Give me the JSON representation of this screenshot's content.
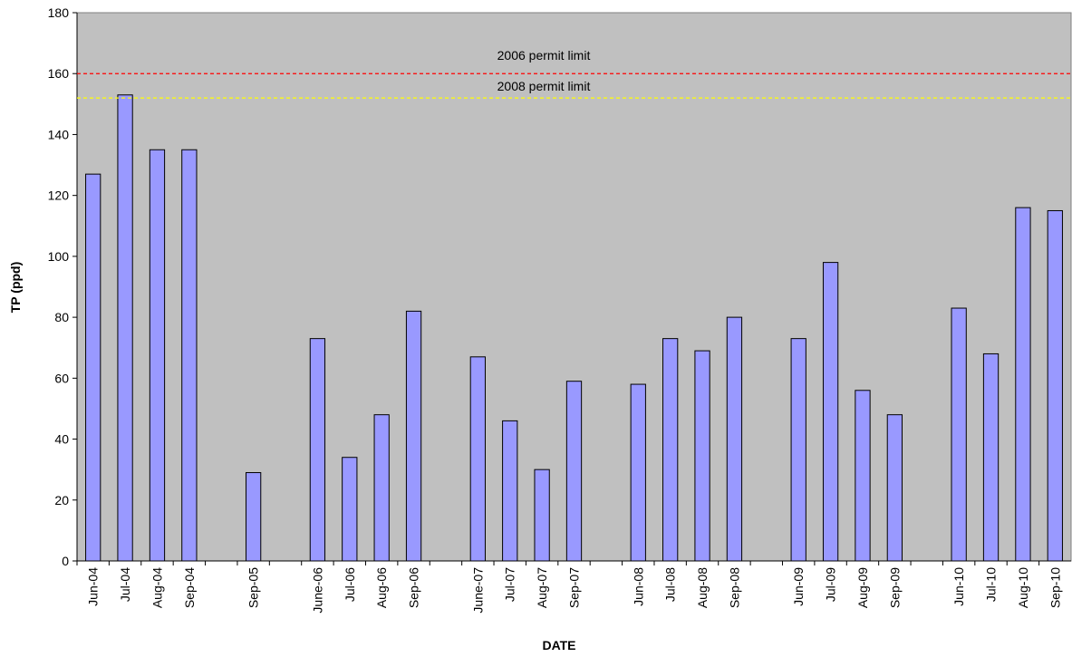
{
  "chart_data": {
    "type": "bar",
    "x_label": "DATE",
    "y_label": "TP (ppd)",
    "categories": [
      "Jun-04",
      "Jul-04",
      "Aug-04",
      "Sep-04",
      null,
      "Sep-05",
      null,
      "June-06",
      "Jul-06",
      "Aug-06",
      "Sep-06",
      null,
      "June-07",
      "Jul-07",
      "Aug-07",
      "Sep-07",
      null,
      "Jun-08",
      "Jul-08",
      "Aug-08",
      "Sep-08",
      null,
      "Jun-09",
      "Jul-09",
      "Aug-09",
      "Sep-09",
      null,
      "Jun-10",
      "Jul-10",
      "Aug-10",
      "Sep-10"
    ],
    "values": [
      127,
      153,
      135,
      135,
      null,
      29,
      null,
      73,
      34,
      48,
      82,
      null,
      67,
      46,
      30,
      59,
      null,
      58,
      73,
      69,
      80,
      null,
      73,
      98,
      56,
      48,
      null,
      83,
      68,
      116,
      115
    ],
    "color": "#9999ff",
    "plot_background": "#c0c0c0",
    "ylim": [
      0,
      180
    ],
    "yticks": [
      0,
      20,
      40,
      60,
      80,
      100,
      120,
      140,
      160,
      180
    ],
    "reference_lines": [
      {
        "label": "2006 permit limit",
        "value": 160,
        "color": "#ff0000"
      },
      {
        "label": "2008 permit limit",
        "value": 152,
        "color": "#ffff00"
      }
    ]
  }
}
